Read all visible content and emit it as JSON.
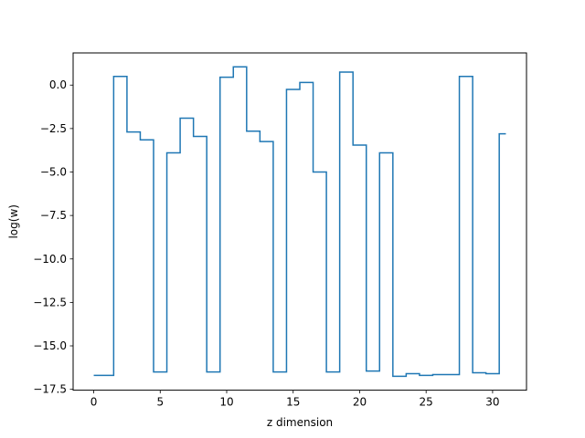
{
  "chart_data": {
    "type": "line",
    "drawstyle": "steps-mid",
    "title": "",
    "xlabel": "z dimension",
    "ylabel": "log(w)",
    "xlim": [
      -1.55,
      32.55
    ],
    "ylim": [
      -17.55,
      1.85
    ],
    "xticks": [
      0,
      5,
      10,
      15,
      20,
      25,
      30
    ],
    "xtick_labels": [
      "0",
      "5",
      "10",
      "15",
      "20",
      "25",
      "30"
    ],
    "yticks": [
      0.0,
      -2.5,
      -5.0,
      -7.5,
      -10.0,
      -12.5,
      -15.0,
      -17.5
    ],
    "ytick_labels": [
      "0.0",
      "−2.5",
      "−5.0",
      "−7.5",
      "−10.0",
      "−12.5",
      "−15.0",
      "−17.5"
    ],
    "grid": false,
    "color": "#1f77b4",
    "x": [
      0,
      1,
      2,
      3,
      4,
      5,
      6,
      7,
      8,
      9,
      10,
      11,
      12,
      13,
      14,
      15,
      16,
      17,
      18,
      19,
      20,
      21,
      22,
      23,
      24,
      25,
      26,
      27,
      28,
      29,
      30,
      31
    ],
    "y": [
      -16.7,
      -16.7,
      0.5,
      -2.7,
      -3.15,
      -16.5,
      -3.9,
      -1.9,
      -2.95,
      -16.5,
      0.45,
      1.05,
      -2.65,
      -3.25,
      -16.5,
      -0.25,
      0.15,
      -5.0,
      -16.5,
      0.75,
      -3.45,
      -16.45,
      -3.9,
      -16.75,
      -16.6,
      -16.7,
      -16.65,
      -16.65,
      0.5,
      -16.55,
      -16.6,
      -2.8
    ]
  }
}
